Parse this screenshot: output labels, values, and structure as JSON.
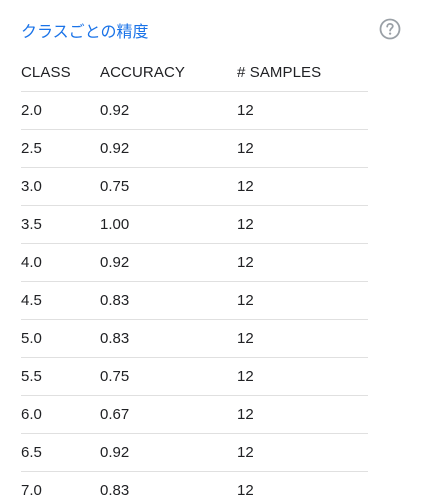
{
  "header": {
    "title": "クラスごとの精度",
    "help_icon": "help-circle-icon"
  },
  "table": {
    "columns": [
      "CLASS",
      "ACCURACY",
      "# SAMPLES"
    ],
    "rows": [
      [
        "2.0",
        "0.92",
        "12"
      ],
      [
        "2.5",
        "0.92",
        "12"
      ],
      [
        "3.0",
        "0.75",
        "12"
      ],
      [
        "3.5",
        "1.00",
        "12"
      ],
      [
        "4.0",
        "0.92",
        "12"
      ],
      [
        "4.5",
        "0.83",
        "12"
      ],
      [
        "5.0",
        "0.83",
        "12"
      ],
      [
        "5.5",
        "0.75",
        "12"
      ],
      [
        "6.0",
        "0.67",
        "12"
      ],
      [
        "6.5",
        "0.92",
        "12"
      ],
      [
        "7.0",
        "0.83",
        "12"
      ]
    ]
  },
  "colors": {
    "title": "#1a73e8",
    "text": "#202124",
    "divider": "#e0e0e0",
    "icon": "#9aa0a6"
  }
}
